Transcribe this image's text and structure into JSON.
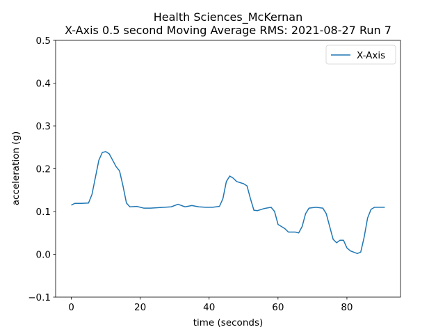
{
  "chart_data": {
    "type": "line",
    "title": "Health Sciences_McKernan",
    "subtitle": "X-Axis 0.5 second Moving Average RMS: 2021-08-27 Run 7",
    "x_label": "time (seconds)",
    "y_label": "acceleration (g)",
    "x": [
      0,
      1,
      3,
      5,
      6,
      7,
      8,
      9,
      10,
      11,
      12,
      13,
      14,
      15,
      16,
      17,
      19,
      21,
      23,
      25,
      27,
      29,
      31,
      33,
      35,
      37,
      39,
      41,
      43,
      44,
      45,
      46,
      47,
      48,
      50,
      51,
      52,
      53,
      54,
      56,
      58,
      59,
      60,
      62,
      63,
      65,
      66,
      67,
      68,
      69,
      71,
      73,
      74,
      75,
      76,
      77,
      78,
      79,
      80,
      81,
      82,
      83,
      84,
      85,
      86,
      87,
      88,
      91
    ],
    "series": [
      {
        "name": "X-Axis",
        "color": "#1f77b4",
        "values": [
          0.115,
          0.119,
          0.119,
          0.12,
          0.14,
          0.18,
          0.22,
          0.238,
          0.24,
          0.235,
          0.22,
          0.205,
          0.195,
          0.16,
          0.12,
          0.111,
          0.112,
          0.108,
          0.108,
          0.109,
          0.11,
          0.111,
          0.117,
          0.111,
          0.114,
          0.111,
          0.11,
          0.11,
          0.112,
          0.13,
          0.17,
          0.183,
          0.178,
          0.17,
          0.165,
          0.16,
          0.13,
          0.103,
          0.102,
          0.107,
          0.11,
          0.1,
          0.07,
          0.06,
          0.052,
          0.052,
          0.05,
          0.065,
          0.095,
          0.108,
          0.11,
          0.108,
          0.095,
          0.065,
          0.035,
          0.027,
          0.033,
          0.033,
          0.015,
          0.008,
          0.005,
          0.002,
          0.005,
          0.04,
          0.085,
          0.105,
          0.11,
          0.11
        ]
      }
    ],
    "xlim": [
      -4.55,
      95.55
    ],
    "xticks": [
      0,
      20,
      40,
      60,
      80
    ],
    "ylim": [
      -0.1,
      0.5
    ],
    "yticks": [
      {
        "value": -0.1,
        "label": "−0.1"
      },
      {
        "value": 0,
        "label": "0.0"
      },
      0.1,
      0.2,
      0.3,
      0.4,
      0.5
    ],
    "legend": "upper right",
    "grid": false
  }
}
